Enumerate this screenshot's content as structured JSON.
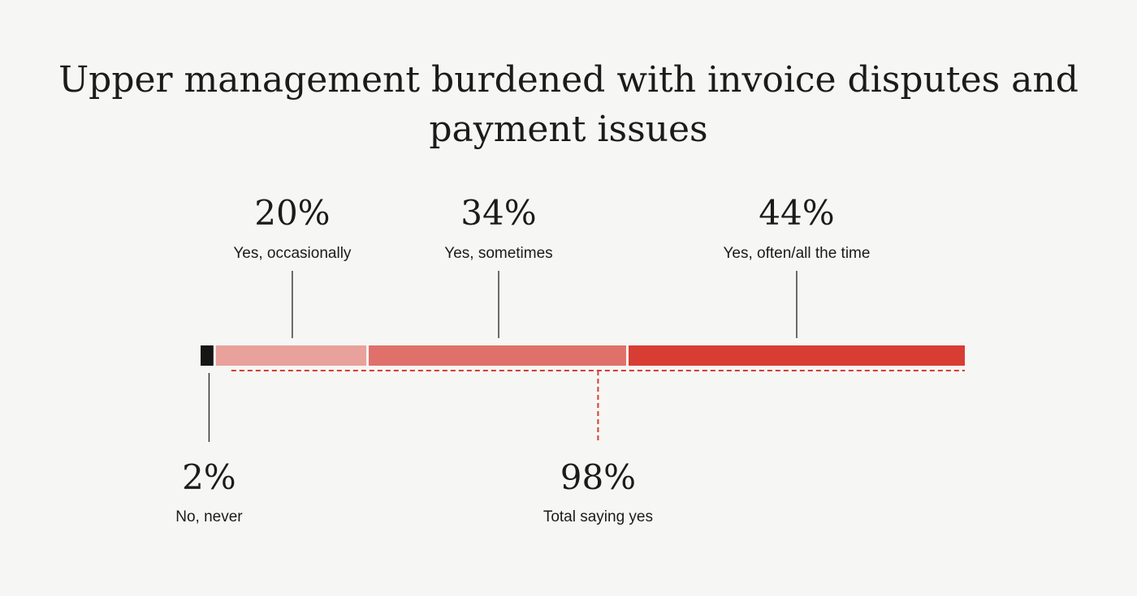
{
  "chart_data": {
    "type": "bar",
    "orientation": "horizontal-stacked",
    "title_lines": [
      "Upper management burdened with invoice disputes and",
      "payment issues"
    ],
    "xlim": [
      0,
      100
    ],
    "grid": false,
    "legend": "none",
    "segments": [
      {
        "label": "No, never",
        "value": 2,
        "value_label": "2%",
        "color": "#151515",
        "label_position": "below"
      },
      {
        "label": "Yes, occasionally",
        "value": 20,
        "value_label": "20%",
        "color": "#e9a19b",
        "label_position": "above"
      },
      {
        "label": "Yes, sometimes",
        "value": 34,
        "value_label": "34%",
        "color": "#e0706a",
        "label_position": "above"
      },
      {
        "label": "Yes, often/all the time",
        "value": 44,
        "value_label": "44%",
        "color": "#d73d33",
        "label_position": "above"
      }
    ],
    "total": {
      "label": "Total saying yes",
      "value": 98,
      "value_label": "98%",
      "color": "#d73d33",
      "range": [
        2,
        100
      ]
    }
  }
}
